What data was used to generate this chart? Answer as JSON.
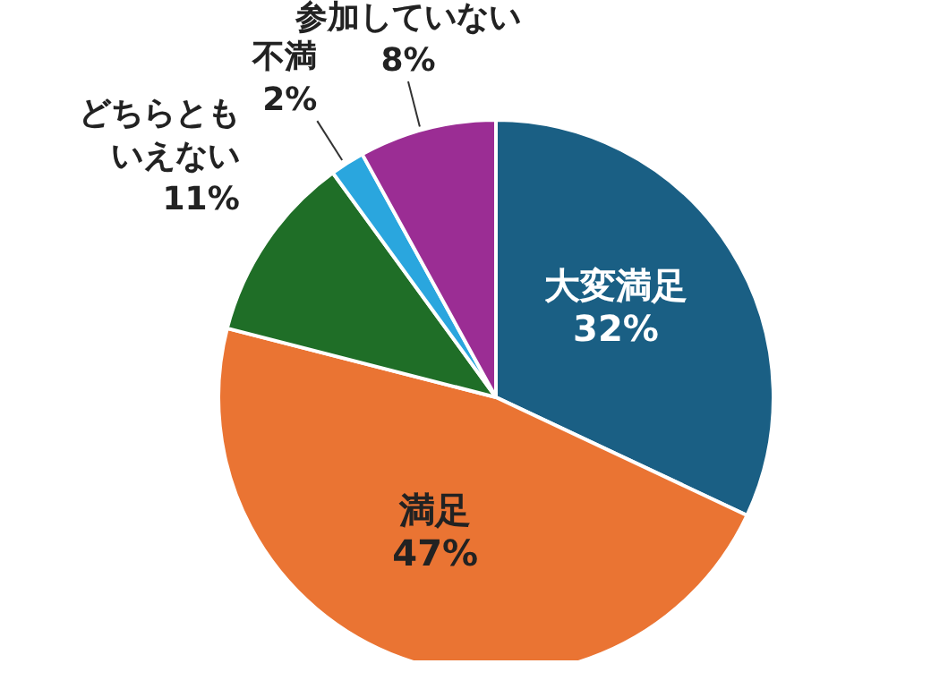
{
  "chart_data": {
    "type": "pie",
    "categories": [
      "大変満足",
      "満足",
      "どちらともいえない",
      "不満",
      "参加していない"
    ],
    "values": [
      32,
      47,
      11,
      2,
      8
    ],
    "colors": [
      "#1a5f84",
      "#ea7433",
      "#1f6e27",
      "#2aa6de",
      "#9b2d94"
    ],
    "value_labels": [
      "32%",
      "47%",
      "11%",
      "2%",
      "8%"
    ]
  }
}
